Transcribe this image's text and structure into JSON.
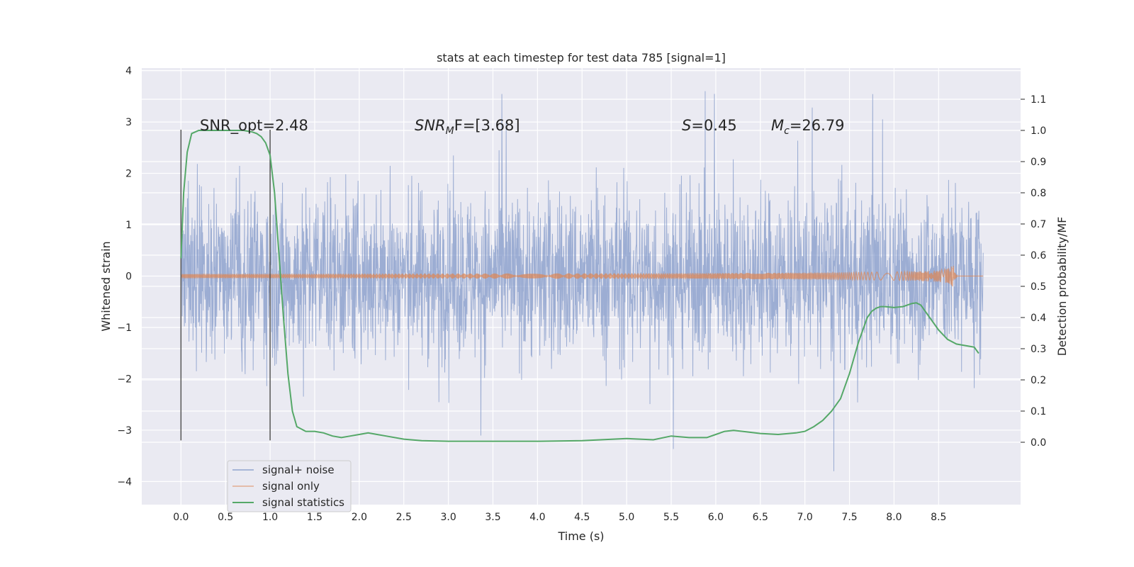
{
  "chart_data": {
    "type": "line",
    "title": "stats at each timestep for test data 785 [signal=1]",
    "xlabel": "Time (s)",
    "ylabel": "Whitened strain",
    "ylabel_right": "Detection probability/MF",
    "xlim": [
      -0.44,
      9.42
    ],
    "ylim": [
      -4.45,
      4.05
    ],
    "ylim_right": [
      -0.2,
      1.2
    ],
    "x_ticks": [
      "0.0",
      "0.5",
      "1.0",
      "1.5",
      "2.0",
      "2.5",
      "3.0",
      "3.5",
      "4.0",
      "4.5",
      "5.0",
      "5.5",
      "6.0",
      "6.5",
      "7.0",
      "7.5",
      "8.0",
      "8.5"
    ],
    "x_tick_values": [
      0.0,
      0.5,
      1.0,
      1.5,
      2.0,
      2.5,
      3.0,
      3.5,
      4.0,
      4.5,
      5.0,
      5.5,
      6.0,
      6.5,
      7.0,
      7.5,
      8.0,
      8.5
    ],
    "y_ticks": [
      "4",
      "3",
      "2",
      "1",
      "0",
      "−1",
      "−2",
      "−3",
      "−4"
    ],
    "y_tick_values": [
      4,
      3,
      2,
      1,
      0,
      -1,
      -2,
      -3,
      -4
    ],
    "y_right_ticks": [
      "1.1",
      "1.0",
      "0.9",
      "0.8",
      "0.7",
      "0.6",
      "0.5",
      "0.4",
      "0.3",
      "0.2",
      "0.1",
      "0.0"
    ],
    "y_right_tick_values": [
      1.1,
      1.0,
      0.9,
      0.8,
      0.7,
      0.6,
      0.5,
      0.4,
      0.3,
      0.2,
      0.1,
      0.0
    ],
    "legend_position": "lower-left",
    "series": [
      {
        "name": "signal+ noise",
        "color": "#7b93c6",
        "description_kind": "dense noise",
        "time_range": [
          0.0,
          9.0
        ],
        "typical_amplitude": 1.6,
        "peak_amplitude": 3.6
      },
      {
        "name": "signal only",
        "color": "#dd8452",
        "description_kind": "chirp",
        "time_range": [
          0.0,
          9.0
        ],
        "merger_time": 8.67,
        "peak_amplitude": 0.5
      },
      {
        "name": "signal statistics",
        "color": "#55a868",
        "axis": "right",
        "x": [
          0.0,
          0.03,
          0.07,
          0.12,
          0.2,
          0.3,
          0.5,
          0.7,
          0.8,
          0.85,
          0.9,
          0.95,
          1.0,
          1.05,
          1.1,
          1.15,
          1.2,
          1.25,
          1.3,
          1.4,
          1.5,
          1.6,
          1.7,
          1.8,
          1.9,
          2.0,
          2.1,
          2.2,
          2.3,
          2.5,
          2.7,
          3.0,
          3.5,
          4.0,
          4.5,
          5.0,
          5.3,
          5.5,
          5.7,
          5.9,
          6.0,
          6.1,
          6.2,
          6.3,
          6.5,
          6.7,
          6.9,
          7.0,
          7.1,
          7.2,
          7.3,
          7.4,
          7.5,
          7.6,
          7.7,
          7.75,
          7.8,
          7.85,
          7.9,
          8.0,
          8.1,
          8.2,
          8.25,
          8.3,
          8.35,
          8.4,
          8.5,
          8.6,
          8.7,
          8.8,
          8.9,
          8.95
        ],
        "values": [
          0.59,
          0.8,
          0.93,
          0.99,
          1.0,
          1.0,
          1.0,
          1.0,
          0.995,
          0.99,
          0.98,
          0.96,
          0.92,
          0.8,
          0.6,
          0.4,
          0.22,
          0.1,
          0.05,
          0.035,
          0.035,
          0.03,
          0.02,
          0.015,
          0.02,
          0.025,
          0.03,
          0.025,
          0.02,
          0.01,
          0.005,
          0.003,
          0.003,
          0.003,
          0.005,
          0.012,
          0.008,
          0.02,
          0.015,
          0.015,
          0.025,
          0.035,
          0.038,
          0.035,
          0.028,
          0.025,
          0.03,
          0.035,
          0.05,
          0.07,
          0.1,
          0.14,
          0.22,
          0.32,
          0.4,
          0.42,
          0.43,
          0.435,
          0.435,
          0.432,
          0.435,
          0.445,
          0.447,
          0.44,
          0.42,
          0.4,
          0.36,
          0.33,
          0.315,
          0.31,
          0.305,
          0.285
        ]
      }
    ],
    "vertical_lines": [
      0.0,
      1.0
    ],
    "annotations": {
      "snr_opt": "SNR_opt=2.48",
      "snr_mf_base": "SNR",
      "snr_mf_sub": "M",
      "snr_mf_rest": "F=[3.68]",
      "s_label": "S",
      "s_value": "=0.45",
      "mc_label": "M",
      "mc_sub": "c",
      "mc_value": "=26.79"
    }
  }
}
